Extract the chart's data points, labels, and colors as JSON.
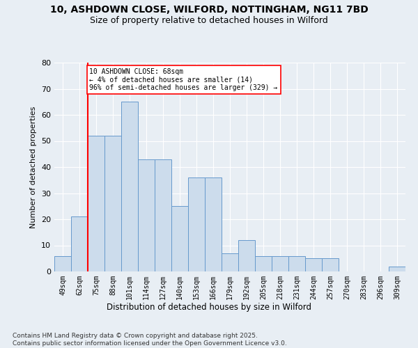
{
  "title1": "10, ASHDOWN CLOSE, WILFORD, NOTTINGHAM, NG11 7BD",
  "title2": "Size of property relative to detached houses in Wilford",
  "xlabel": "Distribution of detached houses by size in Wilford",
  "ylabel": "Number of detached properties",
  "categories": [
    "49sqm",
    "62sqm",
    "75sqm",
    "88sqm",
    "101sqm",
    "114sqm",
    "127sqm",
    "140sqm",
    "153sqm",
    "166sqm",
    "179sqm",
    "192sqm",
    "205sqm",
    "218sqm",
    "231sqm",
    "244sqm",
    "257sqm",
    "270sqm",
    "283sqm",
    "296sqm",
    "309sqm"
  ],
  "values": [
    6,
    21,
    52,
    52,
    65,
    43,
    43,
    25,
    36,
    36,
    7,
    12,
    6,
    6,
    6,
    5,
    5,
    0,
    0,
    0,
    2
  ],
  "bar_color": "#ccdcec",
  "bar_edge_color": "#6699cc",
  "annotation_text": "10 ASHDOWN CLOSE: 68sqm\n← 4% of detached houses are smaller (14)\n96% of semi-detached houses are larger (329) →",
  "annotation_box_color": "white",
  "annotation_box_edge_color": "red",
  "vline_color": "red",
  "vline_x": 1.5,
  "ylim": [
    0,
    80
  ],
  "yticks": [
    0,
    10,
    20,
    30,
    40,
    50,
    60,
    70,
    80
  ],
  "background_color": "#e8eef4",
  "grid_color": "white",
  "footer": "Contains HM Land Registry data © Crown copyright and database right 2025.\nContains public sector information licensed under the Open Government Licence v3.0."
}
